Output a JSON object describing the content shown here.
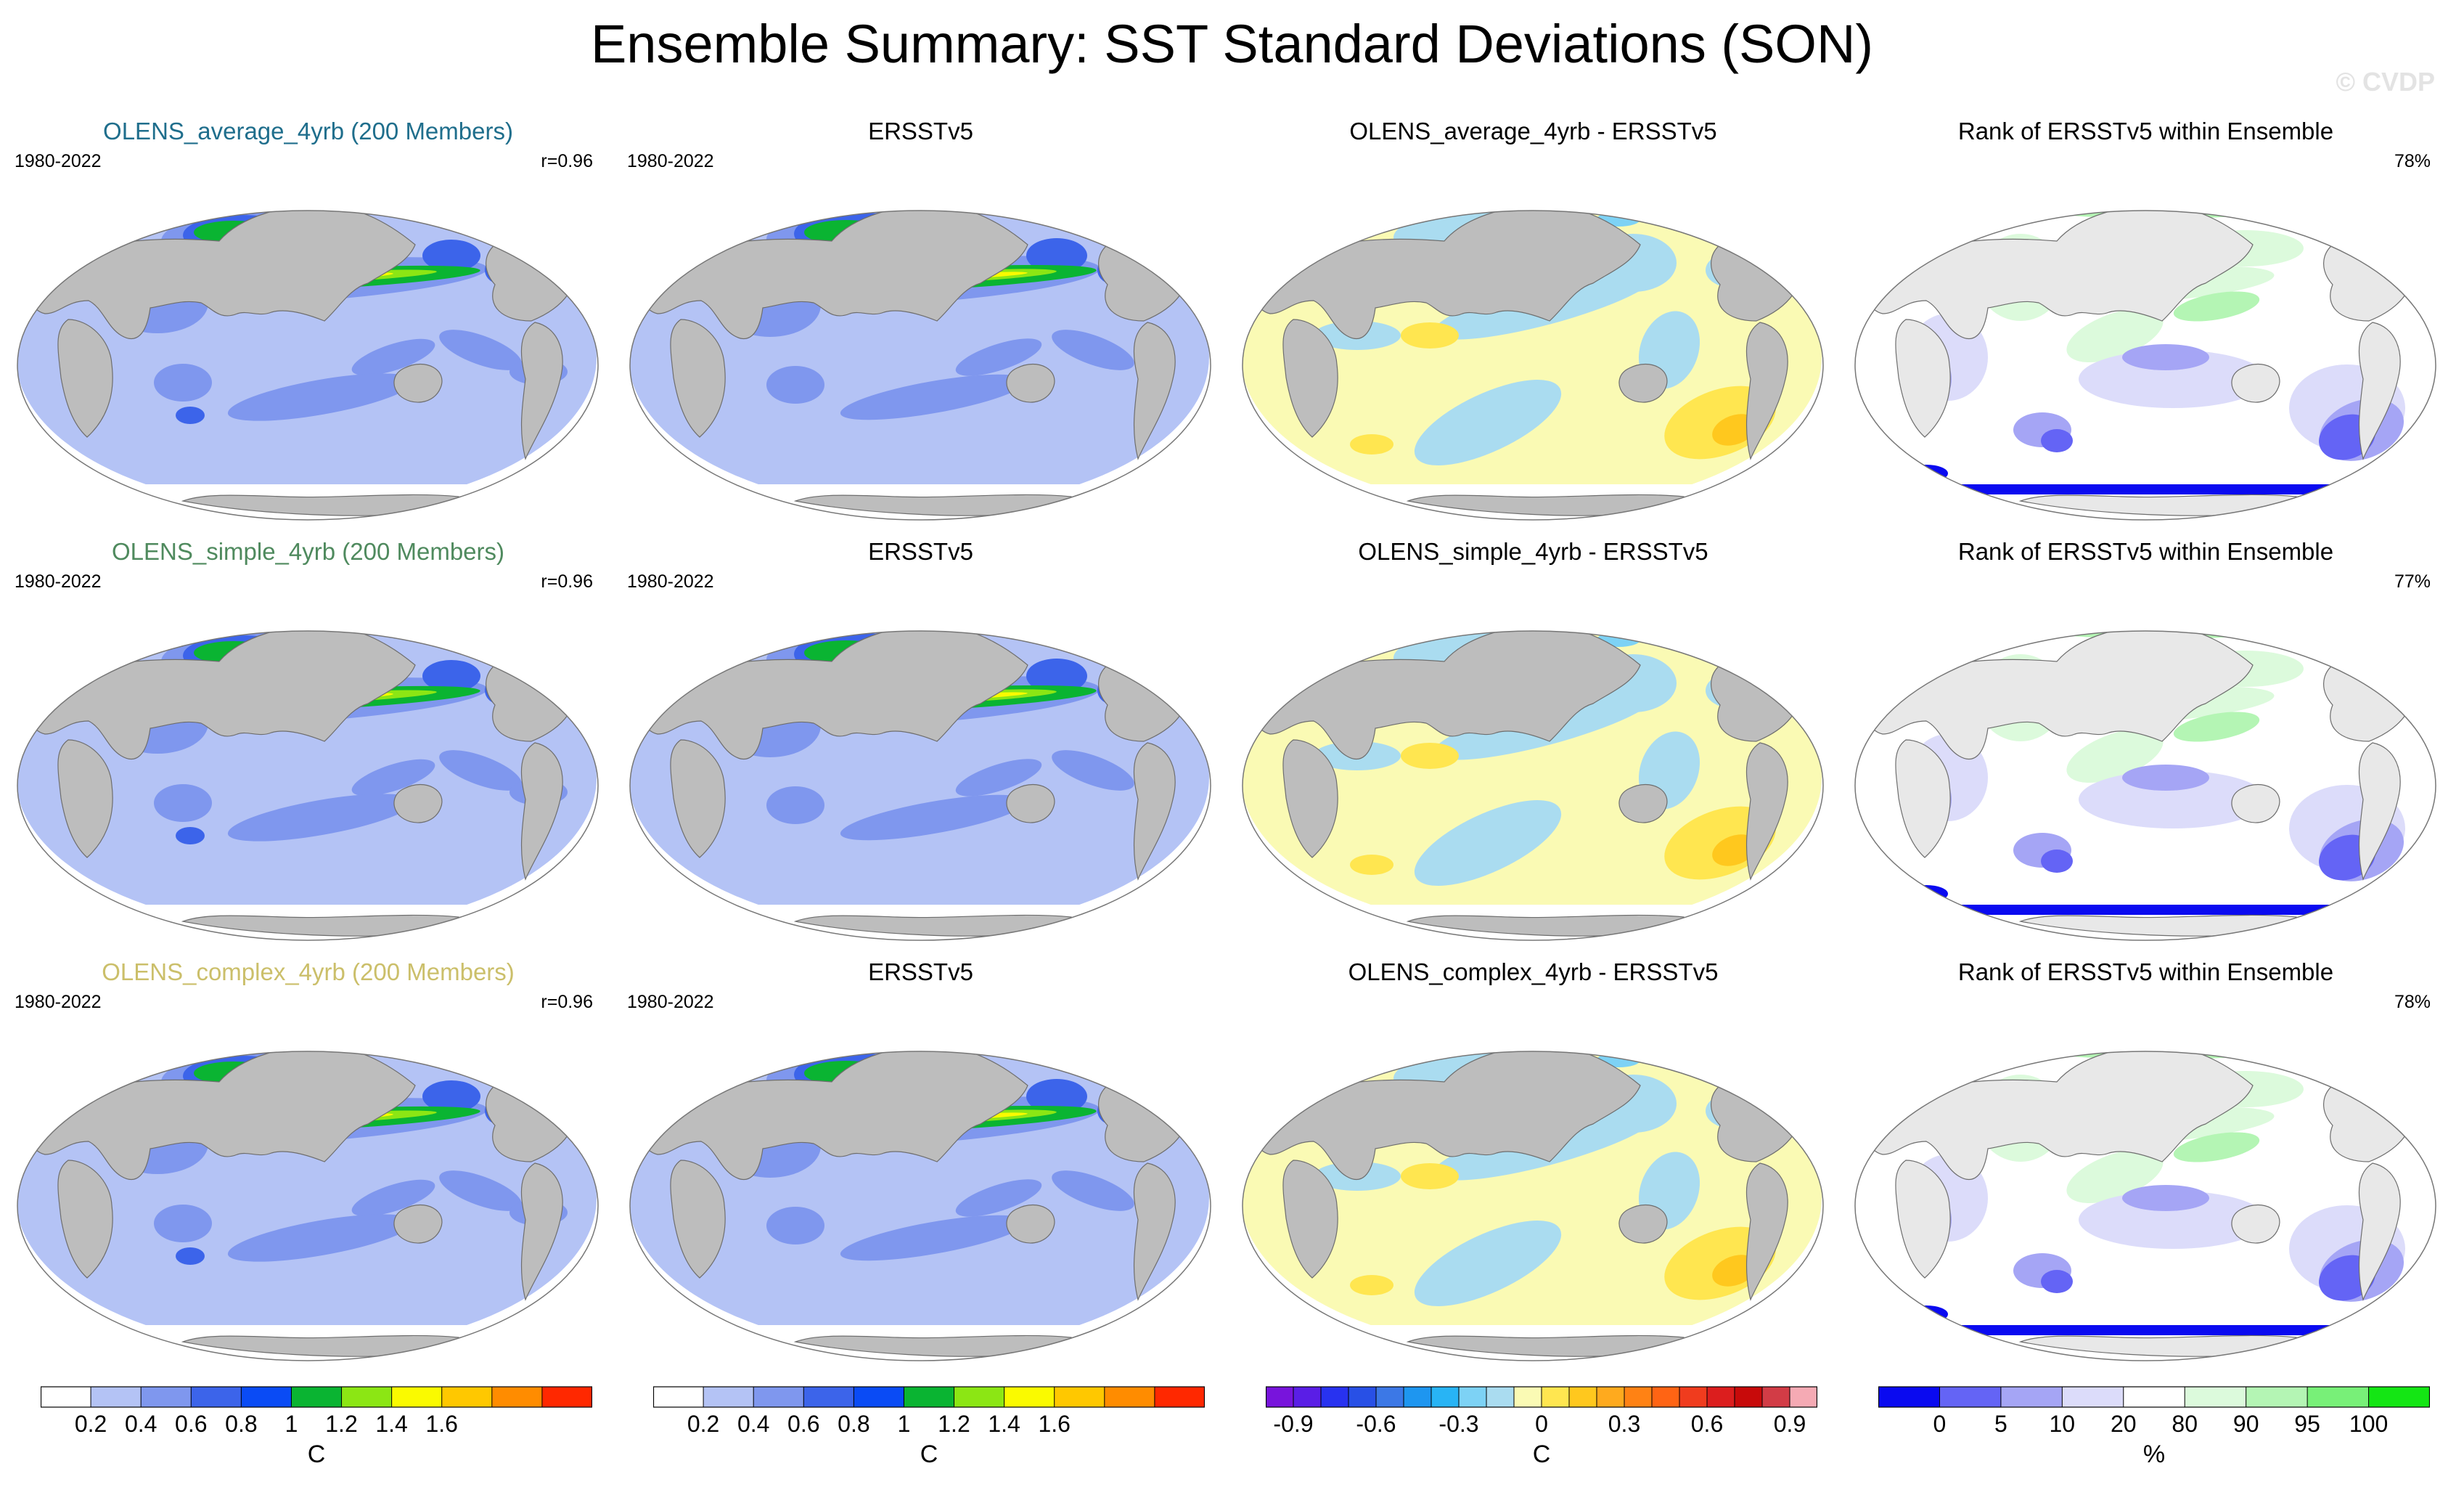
{
  "title": "Ensemble Summary: SST Standard Deviations (SON)",
  "watermark": "© CVDP",
  "colors": {
    "land": "#bdbdbd",
    "model_rows": [
      "#1f6e8c",
      "#4f8a5e",
      "#cbbf6a"
    ]
  },
  "rows": [
    {
      "model": {
        "title": "OLENS_average_4yrb (200 Members)",
        "period": "1980-2022",
        "corr": "r=0.96"
      },
      "obs": {
        "title": "ERSSTv5",
        "period": "1980-2022"
      },
      "diff": {
        "title": "OLENS_average_4yrb - ERSSTv5"
      },
      "rank": {
        "title": "Rank of ERSSTv5 within Ensemble",
        "pct": "78%"
      }
    },
    {
      "model": {
        "title": "OLENS_simple_4yrb (200 Members)",
        "period": "1980-2022",
        "corr": "r=0.96"
      },
      "obs": {
        "title": "ERSSTv5",
        "period": "1980-2022"
      },
      "diff": {
        "title": "OLENS_simple_4yrb - ERSSTv5"
      },
      "rank": {
        "title": "Rank of ERSSTv5 within Ensemble",
        "pct": "77%"
      }
    },
    {
      "model": {
        "title": "OLENS_complex_4yrb (200 Members)",
        "period": "1980-2022",
        "corr": "r=0.96"
      },
      "obs": {
        "title": "ERSSTv5",
        "period": "1980-2022"
      },
      "diff": {
        "title": "OLENS_complex_4yrb - ERSSTv5"
      },
      "rank": {
        "title": "Rank of ERSSTv5 within Ensemble",
        "pct": "78%"
      }
    }
  ],
  "chart_data": [
    {
      "type": "colorbar",
      "units": "C",
      "colors": [
        "#ffffff",
        "#b4c3f5",
        "#7f97ee",
        "#3c64ea",
        "#0a4bf5",
        "#0ab432",
        "#8ce614",
        "#fafa00",
        "#ffc800",
        "#ff8c00",
        "#ff2800"
      ],
      "tick_labels": [
        "0.2",
        "0.4",
        "0.6",
        "0.8",
        "1",
        "1.2",
        "1.4",
        "1.6"
      ]
    },
    {
      "type": "colorbar",
      "units": "C",
      "colors": [
        "#ffffff",
        "#b4c3f5",
        "#7f97ee",
        "#3c64ea",
        "#0a4bf5",
        "#0ab432",
        "#8ce614",
        "#fafa00",
        "#ffc800",
        "#ff8c00",
        "#ff2800"
      ],
      "tick_labels": [
        "0.2",
        "0.4",
        "0.6",
        "0.8",
        "1",
        "1.2",
        "1.4",
        "1.6"
      ]
    },
    {
      "type": "colorbar",
      "units": "C",
      "colors": [
        "#7814dc",
        "#5a1ee6",
        "#2832f0",
        "#2850e6",
        "#3c78e6",
        "#1e96f0",
        "#28b4f5",
        "#7dd2f5",
        "#aadcf0",
        "#fafab4",
        "#ffe650",
        "#ffc81e",
        "#ffaa1e",
        "#ff8214",
        "#ff6414",
        "#f03c1e",
        "#dc1e1e",
        "#c80a0a",
        "#d23c46",
        "#f5aab4"
      ],
      "tick_labels": [
        "-0.9",
        "-0.6",
        "-0.3",
        "0",
        "0.3",
        "0.6",
        "0.9"
      ]
    },
    {
      "type": "colorbar",
      "units": "%",
      "colors": [
        "#0a0af0",
        "#6464f5",
        "#a5a5f5",
        "#dcdcfa",
        "#ffffff",
        "#dcfadc",
        "#b4f5b4",
        "#78f078",
        "#14e614"
      ],
      "tick_labels": [
        "0",
        "5",
        "10",
        "20",
        "80",
        "90",
        "95",
        "100"
      ]
    }
  ]
}
